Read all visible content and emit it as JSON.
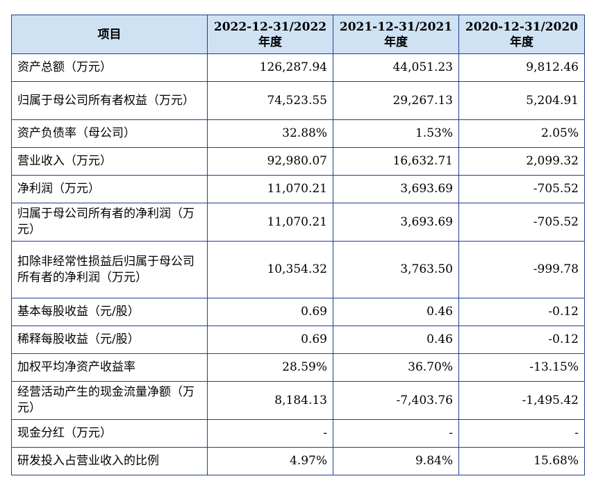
{
  "table": {
    "header": {
      "item": "项目",
      "cols": [
        {
          "line1": "2022-12-31/2022",
          "line2": "年度"
        },
        {
          "line1": "2021-12-31/2021",
          "line2": "年度"
        },
        {
          "line1": "2020-12-31/2020",
          "line2": "年度"
        }
      ]
    },
    "rows": [
      {
        "label": "资产总额（万元）",
        "values": [
          "126,287.94",
          "44,051.23",
          "9,812.46"
        ]
      },
      {
        "label": "归属于母公司所有者权益（万元）",
        "values": [
          "74,523.55",
          "29,267.13",
          "5,204.91"
        ]
      },
      {
        "label": "资产负债率（母公司）",
        "values": [
          "32.88%",
          "1.53%",
          "2.05%"
        ]
      },
      {
        "label": "营业收入（万元）",
        "values": [
          "92,980.07",
          "16,632.71",
          "2,099.32"
        ]
      },
      {
        "label": "净利润（万元）",
        "values": [
          "11,070.21",
          "3,693.69",
          "-705.52"
        ]
      },
      {
        "label": "归属于母公司所有者的净利润（万元）",
        "values": [
          "11,070.21",
          "3,693.69",
          "-705.52"
        ]
      },
      {
        "label": "扣除非经常性损益后归属于母公司所有者的净利润（万元）",
        "values": [
          "10,354.32",
          "3,763.50",
          "-999.78"
        ]
      },
      {
        "label": "基本每股收益（元/股）",
        "values": [
          "0.69",
          "0.46",
          "-0.12"
        ]
      },
      {
        "label": "稀释每股收益（元/股）",
        "values": [
          "0.69",
          "0.46",
          "-0.12"
        ]
      },
      {
        "label": "加权平均净资产收益率",
        "values": [
          "28.59%",
          "36.70%",
          "-13.15%"
        ]
      },
      {
        "label": "经营活动产生的现金流量净额（万元）",
        "values": [
          "8,184.13",
          "-7,403.76",
          "-1,495.42"
        ]
      },
      {
        "label": "现金分红（万元）",
        "values": [
          "-",
          "-",
          "-"
        ]
      },
      {
        "label": "研发投入占营业收入的比例",
        "values": [
          "4.97%",
          "9.84%",
          "15.68%"
        ]
      }
    ]
  }
}
